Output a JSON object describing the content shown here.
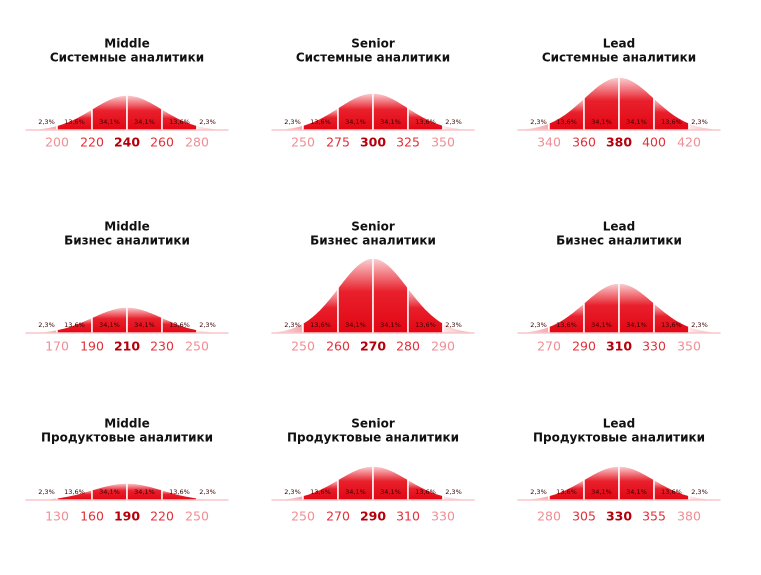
{
  "chart_data": [
    {
      "type": "bell",
      "title": "Middle",
      "subtitle": "Системные аналитики",
      "xticks": [
        200,
        220,
        240,
        260,
        280
      ],
      "values": [
        2.3,
        13.6,
        34.1,
        34.1,
        13.6,
        2.3
      ],
      "value_labels": [
        "2,3%",
        "13,6%",
        "34,1%",
        "34,1%",
        "13,6%",
        "2,3%"
      ],
      "color": "#e30613"
    },
    {
      "type": "bell",
      "title": "Senior",
      "subtitle": "Системные аналитики",
      "xticks": [
        250,
        275,
        300,
        325,
        350
      ],
      "values": [
        2.3,
        13.6,
        34.1,
        34.1,
        13.6,
        2.3
      ],
      "value_labels": [
        "2,3%",
        "13,6%",
        "34,1%",
        "34,1%",
        "13,6%",
        "2,3%"
      ],
      "color": "#e30613"
    },
    {
      "type": "bell",
      "title": "Lead",
      "subtitle": "Системные аналитики",
      "xticks": [
        340,
        360,
        380,
        400,
        420
      ],
      "values": [
        2.3,
        13.6,
        34.1,
        34.1,
        13.6,
        2.3
      ],
      "value_labels": [
        "2,3%",
        "13,6%",
        "34,1%",
        "34,1%",
        "13,6%",
        "2,3%"
      ],
      "color": "#e30613"
    },
    {
      "type": "bell",
      "title": "Middle",
      "subtitle": "Бизнес аналитики",
      "xticks": [
        170,
        190,
        210,
        230,
        250
      ],
      "values": [
        2.3,
        13.6,
        34.1,
        34.1,
        13.6,
        2.3
      ],
      "value_labels": [
        "2,3%",
        "13,6%",
        "34,1%",
        "34,1%",
        "13,6%",
        "2,3%"
      ],
      "color": "#e30613"
    },
    {
      "type": "bell",
      "title": "Senior",
      "subtitle": "Бизнес аналитики",
      "xticks": [
        250,
        260,
        270,
        280,
        290
      ],
      "values": [
        2.3,
        13.6,
        34.1,
        34.1,
        13.6,
        2.3
      ],
      "value_labels": [
        "2,3%",
        "13,6%",
        "34,1%",
        "34,1%",
        "13,6%",
        "2,3%"
      ],
      "color": "#e30613"
    },
    {
      "type": "bell",
      "title": "Lead",
      "subtitle": "Бизнес аналитики",
      "xticks": [
        270,
        290,
        310,
        330,
        350
      ],
      "values": [
        2.3,
        13.6,
        34.1,
        34.1,
        13.6,
        2.3
      ],
      "value_labels": [
        "2,3%",
        "13,6%",
        "34,1%",
        "34,1%",
        "13,6%",
        "2,3%"
      ],
      "color": "#e30613"
    },
    {
      "type": "bell",
      "title": "Middle",
      "subtitle": "Продуктовые аналитики",
      "xticks": [
        130,
        160,
        190,
        220,
        250
      ],
      "values": [
        2.3,
        13.6,
        34.1,
        34.1,
        13.6,
        2.3
      ],
      "value_labels": [
        "2,3%",
        "13,6%",
        "34,1%",
        "34,1%",
        "13,6%",
        "2,3%"
      ],
      "color": "#e30613"
    },
    {
      "type": "bell",
      "title": "Senior",
      "subtitle": "Продуктовые аналитики",
      "xticks": [
        250,
        270,
        290,
        310,
        330
      ],
      "values": [
        2.3,
        13.6,
        34.1,
        34.1,
        13.6,
        2.3
      ],
      "value_labels": [
        "2,3%",
        "13,6%",
        "34,1%",
        "34,1%",
        "13,6%",
        "2,3%"
      ],
      "color": "#e30613"
    },
    {
      "type": "bell",
      "title": "Lead",
      "subtitle": "Продуктовые аналитики",
      "xticks": [
        280,
        305,
        330,
        355,
        380
      ],
      "values": [
        2.3,
        13.6,
        34.1,
        34.1,
        13.6,
        2.3
      ],
      "value_labels": [
        "2,3%",
        "13,6%",
        "34,1%",
        "34,1%",
        "13,6%",
        "2,3%"
      ],
      "color": "#e30613"
    }
  ]
}
